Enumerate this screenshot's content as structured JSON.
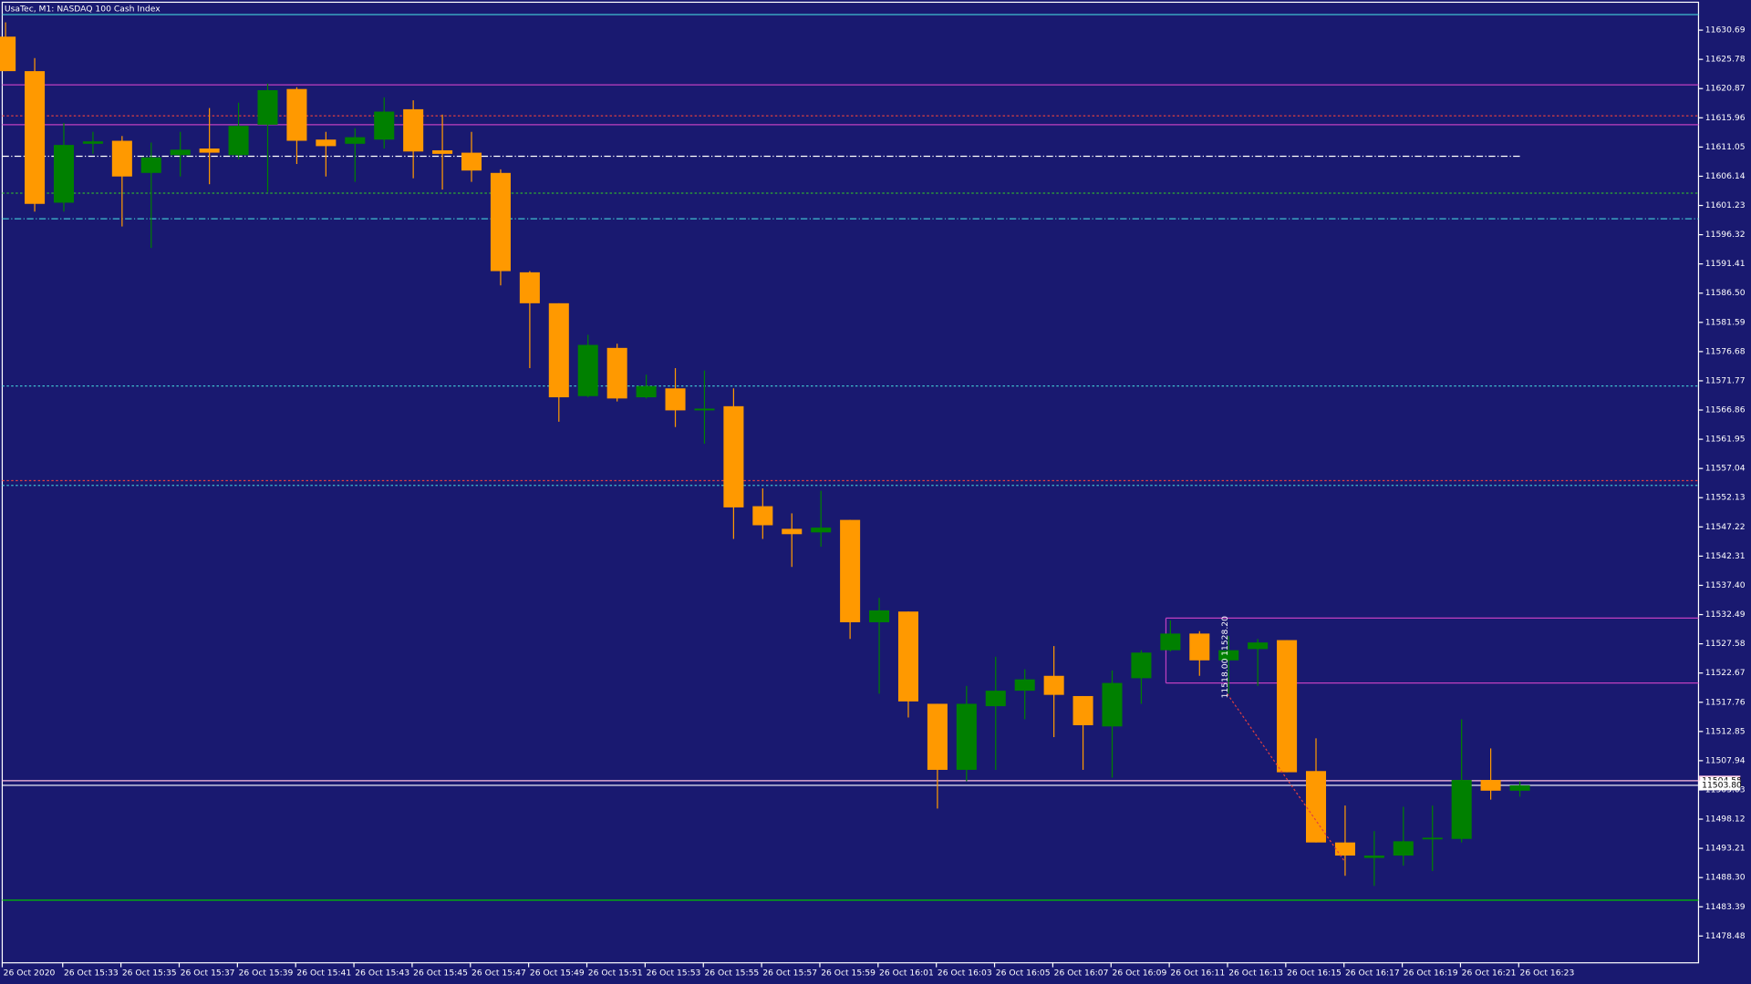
{
  "chart_data": {
    "type": "candlestick",
    "title": "UsaTec, M1:  NASDAQ 100 Cash Index",
    "background": "#191970",
    "up_color": "#008000",
    "down_color": "#ff9900",
    "categories": [
      "26 Oct 2020",
      null,
      "26 Oct 15:33",
      null,
      "26 Oct 15:35",
      null,
      "26 Oct 15:37",
      null,
      "26 Oct 15:39",
      null,
      "26 Oct 15:41",
      null,
      "26 Oct 15:43",
      null,
      "26 Oct 15:45",
      null,
      "26 Oct 15:47",
      null,
      "26 Oct 15:49",
      null,
      "26 Oct 15:51",
      null,
      "26 Oct 15:53",
      null,
      "26 Oct 15:55",
      null,
      "26 Oct 15:57",
      null,
      "26 Oct 15:59",
      null,
      "26 Oct 16:01",
      null,
      "26 Oct 16:03",
      null,
      "26 Oct 16:05",
      null,
      "26 Oct 16:07",
      null,
      "26 Oct 16:09",
      null,
      "26 Oct 16:11",
      null,
      "26 Oct 16:13",
      null,
      "26 Oct 16:15",
      null,
      "26 Oct 16:17",
      null,
      "26 Oct 16:19",
      null,
      "26 Oct 16:21",
      null,
      "26 Oct 16:23"
    ],
    "open": [
      11629.6,
      11623.8,
      11601.7,
      11611.6,
      11612.1,
      11606.7,
      11609.7,
      11610.8,
      11609.7,
      11614.8,
      11620.8,
      11612.3,
      11611.6,
      11612.3,
      11617.4,
      11610.5,
      11610.1,
      11606.7,
      11590.0,
      11584.8,
      11569.2,
      11577.3,
      11569.0,
      11570.5,
      11566.8,
      11567.5,
      11550.7,
      11546.9,
      11546.3,
      11548.4,
      11531.2,
      11533.0,
      11517.5,
      11506.4,
      11517.1,
      11519.7,
      11522.2,
      11518.8,
      11513.7,
      11521.8,
      11526.5,
      11529.3,
      11524.8,
      11526.7,
      11528.2,
      11506.2,
      11494.2,
      11491.6,
      11492.0,
      11494.8,
      11494.8,
      11504.7,
      11502.9
    ],
    "high": [
      11632.0,
      11626.0,
      11615.1,
      11613.6,
      11612.9,
      11611.8,
      11613.6,
      11617.6,
      11618.5,
      11621.7,
      11621.1,
      11613.6,
      11614.2,
      11619.4,
      11618.9,
      11616.5,
      11613.6,
      11607.3,
      11590.2,
      11584.8,
      11579.5,
      11578.0,
      11572.8,
      11573.9,
      11573.5,
      11570.5,
      11553.7,
      11549.5,
      11553.3,
      11548.4,
      11535.3,
      11533.0,
      11517.5,
      11520.5,
      11525.4,
      11523.3,
      11527.2,
      11518.8,
      11523.1,
      11526.5,
      11531.5,
      11529.7,
      11528.9,
      11528.4,
      11528.2,
      11511.7,
      11500.4,
      11496.1,
      11500.2,
      11500.4,
      11514.9,
      11510.0,
      11504.5
    ],
    "low": [
      11623.8,
      11600.2,
      11600.2,
      11609.9,
      11597.7,
      11594.1,
      11606.1,
      11604.8,
      11609.0,
      11603.5,
      11608.2,
      11606.1,
      11605.2,
      11610.8,
      11605.8,
      11603.9,
      11605.2,
      11587.8,
      11573.9,
      11564.9,
      11569.0,
      11568.3,
      11568.8,
      11564.0,
      11561.2,
      11545.2,
      11545.2,
      11540.5,
      11543.9,
      11528.4,
      11519.2,
      11515.2,
      11499.9,
      11504.5,
      11506.4,
      11514.9,
      11511.9,
      11506.4,
      11505.1,
      11517.5,
      11526.3,
      11522.2,
      11519.2,
      11520.5,
      11506.0,
      11494.2,
      11488.6,
      11486.9,
      11490.3,
      11489.4,
      11494.2,
      11501.4,
      11501.9
    ],
    "close": [
      11623.8,
      11601.5,
      11611.4,
      11612.0,
      11606.1,
      11609.3,
      11610.6,
      11610.1,
      11614.6,
      11620.6,
      11612.1,
      11611.2,
      11612.7,
      11617.0,
      11610.3,
      11609.9,
      11607.1,
      11590.2,
      11584.8,
      11569.0,
      11577.8,
      11568.8,
      11570.9,
      11566.8,
      11567.1,
      11550.5,
      11547.5,
      11546.0,
      11547.1,
      11531.2,
      11533.2,
      11517.9,
      11506.4,
      11517.5,
      11519.7,
      11521.6,
      11519.0,
      11513.9,
      11521.0,
      11526.1,
      11529.3,
      11524.8,
      11526.5,
      11527.8,
      11506.0,
      11494.2,
      11492.0,
      11492.0,
      11494.4,
      11495.0,
      11504.7,
      11502.9,
      11503.8
    ],
    "ylim": [
      11473.98,
      11635.38
    ],
    "yticks": [
      11630.69,
      11625.78,
      11620.87,
      11615.96,
      11611.05,
      11606.14,
      11601.23,
      11596.32,
      11591.41,
      {
        "value": 11586.5,
        "label": "11586.50"
      },
      11581.59,
      11576.68,
      11571.77,
      11566.86,
      11561.95,
      11557.04,
      11552.13,
      11547.22,
      11542.31,
      {
        "value": 11537.4,
        "label": "11537.40"
      },
      11532.49,
      11527.58,
      11522.67,
      11517.76,
      11512.85,
      11507.94,
      11503.03,
      11498.12,
      11493.21,
      {
        "value": 11488.3,
        "label": "11488.30"
      },
      11483.39,
      11478.48
    ],
    "levels": [
      {
        "value": 11633.3,
        "color": "#40c0d0",
        "style": "solid"
      },
      {
        "value": 11621.5,
        "color": "#c040c0",
        "style": "solid"
      },
      {
        "value": 11616.3,
        "color": "#e04040",
        "style": "dotted"
      },
      {
        "value": 11614.8,
        "color": "#c040c0",
        "style": "solid"
      },
      {
        "value": 11609.5,
        "color": "#ffffff",
        "style": "dashdot",
        "to": 52
      },
      {
        "value": 11603.3,
        "color": "#30b030",
        "style": "dotted"
      },
      {
        "value": 11599.0,
        "color": "#40c0d0",
        "style": "dashdot"
      },
      {
        "value": 11570.9,
        "color": "#40c0d0",
        "style": "dotted"
      },
      {
        "value": 11555.0,
        "color": "#e04040",
        "style": "dotted"
      },
      {
        "value": 11554.2,
        "color": "#40c0d0",
        "style": "dotted"
      },
      {
        "value": 11531.9,
        "color": "#c040c0",
        "style": "solid",
        "from": 40
      },
      {
        "value": 11521.0,
        "color": "#c040c0",
        "style": "solid",
        "from": 40
      },
      {
        "value": 11504.58,
        "label": "11504.58",
        "color": "#ffc0e0",
        "style": "solid"
      },
      {
        "value": 11503.8,
        "label": "11503.80",
        "color": "#ffffff",
        "style": "solid"
      },
      {
        "value": 11484.5,
        "color": "#00c000",
        "style": "solid"
      }
    ],
    "annotations": [
      "11528.20",
      "11518.00"
    ]
  }
}
